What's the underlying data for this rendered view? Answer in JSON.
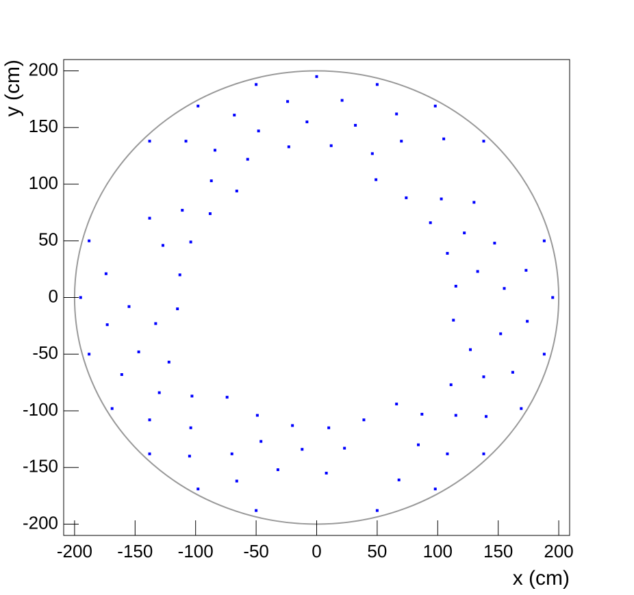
{
  "chart_data": {
    "type": "scatter",
    "x_label": "x (cm)",
    "y_label": "y (cm)",
    "xlim": [
      -209,
      209
    ],
    "ylim": [
      -210,
      210
    ],
    "xticks": [
      -200,
      -150,
      -100,
      -50,
      0,
      50,
      100,
      150,
      200
    ],
    "yticks": [
      -200,
      -150,
      -100,
      -50,
      0,
      50,
      100,
      150,
      200
    ],
    "color": "#0000ff",
    "outline": {
      "x": 0,
      "y": 0,
      "r": 200,
      "color": "#999999"
    },
    "x": [
      115,
      108,
      94,
      74,
      49,
      -66,
      -88,
      -104,
      -113,
      -115,
      -74,
      -49,
      -20,
      10,
      39,
      66,
      113,
      133,
      122,
      103,
      46,
      12,
      -23,
      -57,
      -87,
      -111,
      -127,
      -133,
      -122,
      -103,
      -46,
      -12,
      23,
      87,
      111,
      127,
      155,
      147,
      130,
      70,
      32,
      -8,
      -48,
      -84,
      -138,
      -155,
      -147,
      -130,
      -104,
      -70,
      -32,
      8,
      84,
      115,
      138,
      152,
      173,
      105,
      66,
      21,
      -24,
      -68,
      -108,
      -174,
      -173,
      -161,
      -138,
      -105,
      -66,
      68,
      108,
      140,
      162,
      174,
      195,
      188,
      138,
      98,
      50,
      0,
      -50,
      -98,
      -138,
      -188,
      -195,
      -188,
      -169,
      -138,
      -98,
      -50,
      50,
      98,
      138,
      169,
      188
    ],
    "values": [
      10,
      39,
      66,
      88,
      104,
      94,
      74,
      49,
      20,
      -10,
      -88,
      -104,
      -113,
      -115,
      -108,
      -94,
      -20,
      23,
      57,
      87,
      127,
      134,
      133,
      122,
      103,
      77,
      46,
      -23,
      -57,
      -87,
      -127,
      -134,
      -133,
      -103,
      -77,
      -46,
      8,
      48,
      84,
      138,
      152,
      155,
      147,
      130,
      70,
      -8,
      -48,
      -84,
      -115,
      -138,
      -152,
      -155,
      -130,
      -104,
      -70,
      -32,
      24,
      140,
      162,
      174,
      173,
      161,
      138,
      21,
      -24,
      -68,
      -108,
      -140,
      -162,
      -161,
      -138,
      -105,
      -66,
      -21,
      0,
      50,
      138,
      169,
      188,
      195,
      188,
      169,
      138,
      50,
      0,
      -50,
      -98,
      -138,
      -169,
      -188,
      -188,
      -169,
      -138,
      -98,
      -50
    ]
  }
}
